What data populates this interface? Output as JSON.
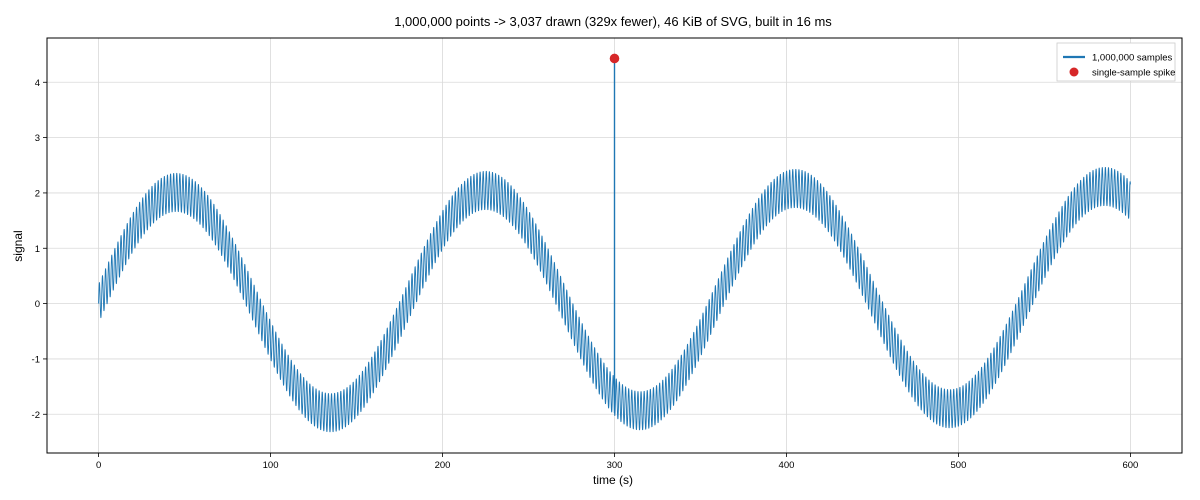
{
  "chart_data": {
    "type": "line",
    "title": "1,000,000 points -> 3,037 drawn (329x fewer), 46 KiB of SVG, built in 16 ms",
    "xlabel": "time (s)",
    "ylabel": "signal",
    "xlim": [
      -30,
      630
    ],
    "ylim": [
      -2.7,
      4.8
    ],
    "xticks": [
      0,
      100,
      200,
      300,
      400,
      500,
      600
    ],
    "yticks": [
      -2,
      -1,
      0,
      1,
      2,
      3,
      4
    ],
    "grid": true,
    "legend_position": "top-right",
    "series": [
      {
        "name": "1,000,000 samples",
        "kind": "line",
        "color": "#1f77b4",
        "x_range": [
          0,
          600
        ],
        "model": {
          "components": [
            {
              "amplitude": 2.0,
              "period_s": 180.0,
              "phase_deg": 0
            },
            {
              "amplitude": 0.35,
              "period_s": 1.8,
              "phase_deg": 0
            }
          ],
          "drift_per_s": 0.0002
        },
        "envelope_summary": [
          {
            "x": 0,
            "min": -0.3,
            "max": 0.4
          },
          {
            "x": 45,
            "min": 1.65,
            "max": 2.35
          },
          {
            "x": 135,
            "min": -2.35,
            "max": -1.65
          },
          {
            "x": 225,
            "min": 1.7,
            "max": 2.4
          },
          {
            "x": 315,
            "min": -2.3,
            "max": -1.6
          },
          {
            "x": 405,
            "min": 1.75,
            "max": 2.45
          },
          {
            "x": 495,
            "min": -2.25,
            "max": -1.55
          },
          {
            "x": 585,
            "min": 1.8,
            "max": 2.45
          },
          {
            "x": 600,
            "min": 1.5,
            "max": 2.2
          }
        ]
      },
      {
        "name": "single-sample spike",
        "kind": "scatter",
        "color": "#d62728",
        "points": [
          {
            "x": 300,
            "y": 4.43
          }
        ]
      }
    ]
  }
}
